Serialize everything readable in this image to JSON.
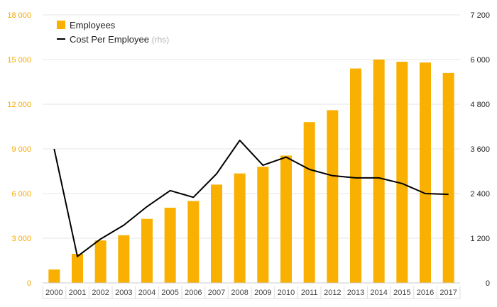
{
  "chart_data": {
    "type": "bar+line",
    "categories": [
      "2000",
      "2001",
      "2002",
      "2003",
      "2004",
      "2005",
      "2006",
      "2007",
      "2008",
      "2009",
      "2010",
      "2011",
      "2012",
      "2013",
      "2014",
      "2015",
      "2016",
      "2017"
    ],
    "series": [
      {
        "name": "Employees",
        "type": "bar",
        "axis": "left",
        "values": [
          900,
          1950,
          2850,
          3200,
          4300,
          5050,
          5500,
          6600,
          7350,
          7800,
          8550,
          10800,
          11600,
          14400,
          15000,
          14850,
          14800,
          14100
        ]
      },
      {
        "name": "Cost Per Employee",
        "type": "line",
        "axis": "right",
        "values": [
          3600,
          710,
          1180,
          1550,
          2050,
          2480,
          2300,
          2930,
          3830,
          3160,
          3380,
          3050,
          2880,
          2820,
          2820,
          2670,
          2400,
          2380
        ]
      }
    ],
    "left_axis": {
      "ylim": [
        0,
        18000
      ],
      "ticks": [
        "0",
        "3 000",
        "6 000",
        "9 000",
        "12 000",
        "15 000",
        "18 000"
      ]
    },
    "right_axis": {
      "ylim": [
        0,
        7200
      ],
      "ticks": [
        "0",
        "1 200",
        "2 400",
        "3 600",
        "4 800",
        "6 000",
        "7 200"
      ]
    },
    "legend": {
      "position": "top-left",
      "items": [
        {
          "label": "Employees",
          "suffix": ""
        },
        {
          "label": "Cost Per Employee",
          "suffix": "(rhs)"
        }
      ]
    },
    "colors": {
      "bar": "#f9b000",
      "line": "#000000",
      "left_ticks": "#f5a800",
      "grid": "#e6e6e6"
    }
  }
}
